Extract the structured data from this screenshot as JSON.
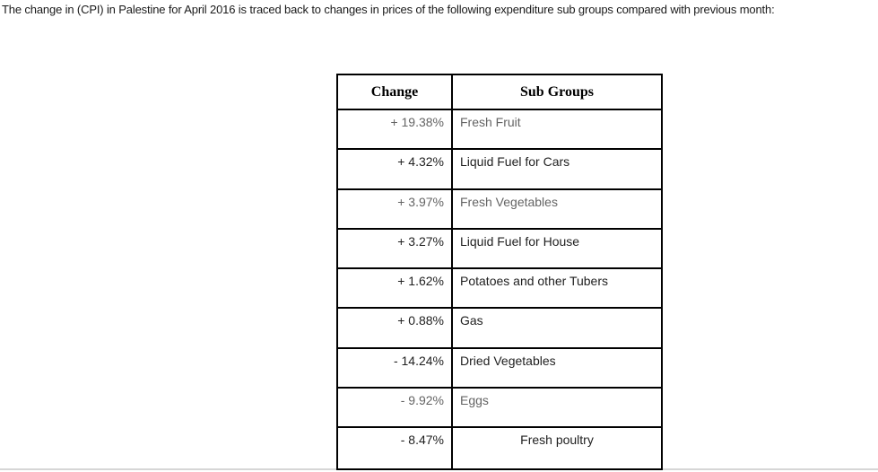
{
  "page": {
    "intro_text": "The change in (CPI) in Palestine for April 2016 is traced back to changes in prices of the following expenditure sub groups compared with previous month:"
  },
  "table": {
    "headers": {
      "change": "Change",
      "sub_groups": "Sub Groups"
    },
    "rows": [
      {
        "change": "+ 19.38%",
        "sub_group": "Fresh Fruit",
        "emphasis": "gray",
        "align": "left"
      },
      {
        "change": "+ 4.32%",
        "sub_group": "Liquid Fuel for Cars",
        "emphasis": "dark",
        "align": "left"
      },
      {
        "change": "+ 3.97%",
        "sub_group": "Fresh Vegetables",
        "emphasis": "gray",
        "align": "left"
      },
      {
        "change": "+ 3.27%",
        "sub_group": "Liquid Fuel for House",
        "emphasis": "dark",
        "align": "left"
      },
      {
        "change": "+ 1.62%",
        "sub_group": "Potatoes and other Tubers",
        "emphasis": "dark",
        "align": "left"
      },
      {
        "change": "+ 0.88%",
        "sub_group": "Gas",
        "emphasis": "dark",
        "align": "left"
      },
      {
        "change": "- 14.24%",
        "sub_group": "Dried Vegetables",
        "emphasis": "dark",
        "align": "left"
      },
      {
        "change": "- 9.92%",
        "sub_group": "Eggs",
        "emphasis": "gray",
        "align": "left"
      },
      {
        "change": "- 8.47%",
        "sub_group": "Fresh poultry",
        "emphasis": "dark",
        "align": "center"
      }
    ],
    "colors": {
      "dark_text": "#1f1f1f",
      "gray_text": "#646464",
      "border": "#000000",
      "bottom_rule": "#d6d6d6"
    }
  }
}
